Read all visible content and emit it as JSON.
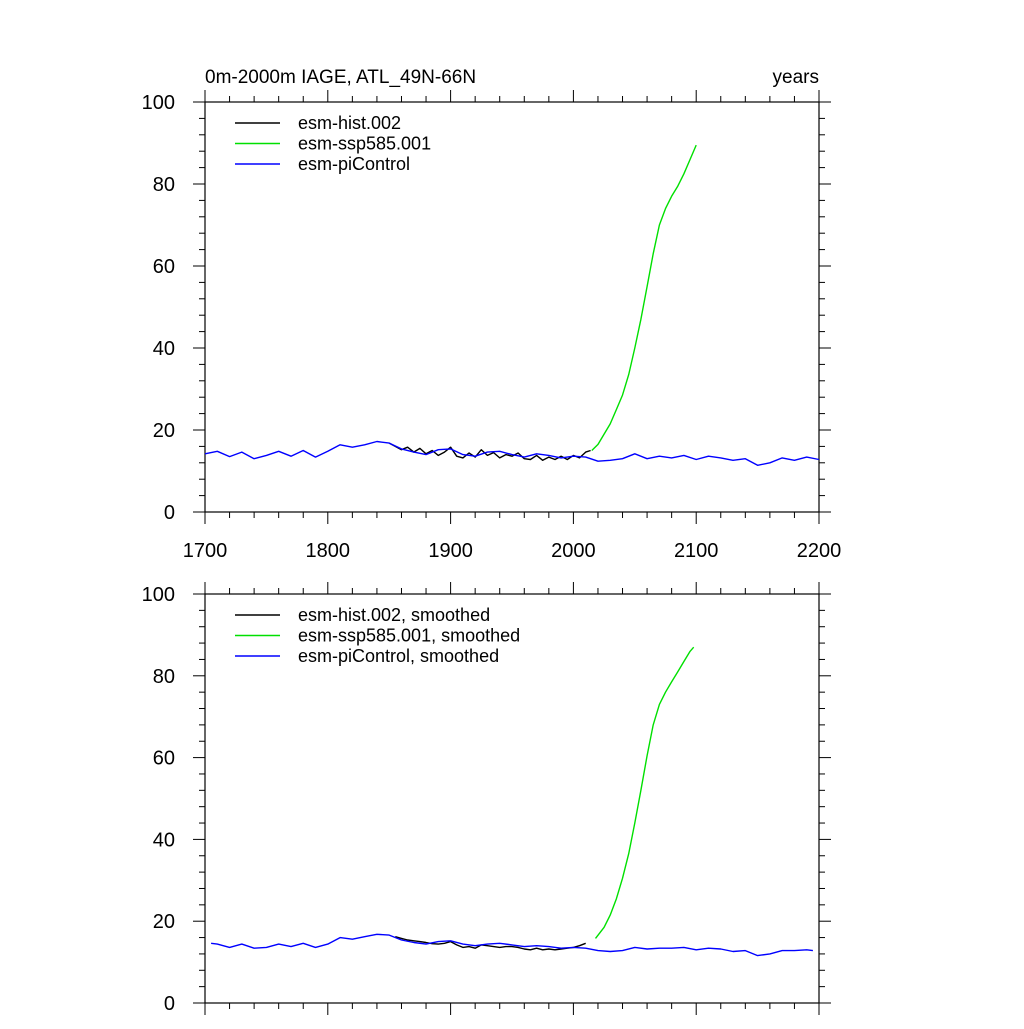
{
  "chart_data": [
    {
      "type": "line",
      "title": "0m-2000m IAGE, ATL_49N-66N",
      "units": "years",
      "xlabel": "",
      "ylabel": "",
      "xlim": [
        1700,
        2200
      ],
      "ylim": [
        0,
        100
      ],
      "xticks": [
        1700,
        1800,
        1900,
        2000,
        2100,
        2200
      ],
      "yticks": [
        0,
        20,
        40,
        60,
        80,
        100
      ],
      "x_tick_labels_shown": true,
      "legend": "top-left",
      "series": [
        {
          "name": "esm-hist.002",
          "color": "#000000",
          "x": [
            1850,
            1855,
            1860,
            1865,
            1870,
            1875,
            1880,
            1885,
            1890,
            1895,
            1900,
            1905,
            1910,
            1915,
            1920,
            1925,
            1930,
            1935,
            1940,
            1945,
            1950,
            1955,
            1960,
            1965,
            1970,
            1975,
            1980,
            1985,
            1990,
            1995,
            2000,
            2005,
            2010,
            2014
          ],
          "y": [
            16.8,
            16.0,
            15.2,
            15.8,
            14.6,
            15.5,
            14.2,
            15.0,
            13.8,
            14.6,
            15.8,
            13.6,
            13.2,
            14.4,
            13.4,
            15.2,
            13.8,
            14.5,
            13.2,
            14.0,
            13.6,
            14.4,
            13.0,
            12.8,
            13.8,
            12.6,
            13.4,
            12.8,
            13.6,
            12.8,
            13.8,
            13.2,
            14.6,
            15.0
          ]
        },
        {
          "name": "esm-ssp585.001",
          "color": "#00e000",
          "x": [
            2015,
            2020,
            2025,
            2030,
            2035,
            2040,
            2045,
            2050,
            2055,
            2060,
            2065,
            2070,
            2075,
            2080,
            2085,
            2090,
            2095,
            2100
          ],
          "y": [
            15.0,
            16.5,
            19.0,
            21.5,
            25.0,
            28.5,
            33.5,
            40.0,
            47.0,
            55.0,
            63.0,
            70.0,
            74.0,
            77.0,
            79.5,
            82.5,
            86.0,
            89.5
          ]
        },
        {
          "name": "esm-piControl",
          "color": "#0000ff",
          "x": [
            1700,
            1710,
            1720,
            1730,
            1740,
            1750,
            1760,
            1770,
            1780,
            1790,
            1800,
            1810,
            1820,
            1830,
            1840,
            1850,
            1860,
            1870,
            1880,
            1890,
            1900,
            1910,
            1920,
            1930,
            1940,
            1950,
            1960,
            1970,
            1980,
            1990,
            2000,
            2010,
            2020,
            2030,
            2040,
            2050,
            2060,
            2070,
            2080,
            2090,
            2100,
            2110,
            2120,
            2130,
            2140,
            2150,
            2160,
            2170,
            2180,
            2190,
            2200
          ],
          "y": [
            14.2,
            14.8,
            13.5,
            14.6,
            13.0,
            13.8,
            14.8,
            13.6,
            15.0,
            13.4,
            14.8,
            16.4,
            15.8,
            16.4,
            17.2,
            16.8,
            15.4,
            14.6,
            14.0,
            15.2,
            15.4,
            14.0,
            13.6,
            14.6,
            14.8,
            14.0,
            13.4,
            14.2,
            13.8,
            13.2,
            13.6,
            13.4,
            12.4,
            12.6,
            13.0,
            14.2,
            13.0,
            13.6,
            13.2,
            13.8,
            12.8,
            13.6,
            13.2,
            12.6,
            13.0,
            11.4,
            12.0,
            13.2,
            12.6,
            13.4,
            12.8
          ]
        }
      ]
    },
    {
      "type": "line",
      "title": "",
      "xlabel": "",
      "ylabel": "",
      "xlim": [
        1700,
        2200
      ],
      "ylim": [
        0,
        100
      ],
      "xticks": [
        1700,
        1800,
        1900,
        2000,
        2100,
        2200
      ],
      "yticks": [
        0,
        20,
        40,
        60,
        80,
        100
      ],
      "x_tick_labels_shown": false,
      "legend": "top-left",
      "series": [
        {
          "name": "esm-hist.002, smoothed",
          "color": "#000000",
          "x": [
            1855,
            1860,
            1865,
            1870,
            1875,
            1880,
            1885,
            1890,
            1895,
            1900,
            1905,
            1910,
            1915,
            1920,
            1925,
            1930,
            1935,
            1940,
            1945,
            1950,
            1955,
            1960,
            1965,
            1970,
            1975,
            1980,
            1985,
            1990,
            1995,
            2000,
            2005,
            2010
          ],
          "y": [
            16.2,
            15.8,
            15.4,
            15.2,
            15.0,
            14.8,
            14.5,
            14.4,
            14.6,
            15.0,
            14.2,
            13.6,
            13.8,
            13.4,
            14.2,
            14.0,
            13.8,
            13.6,
            13.8,
            13.8,
            13.6,
            13.2,
            13.0,
            13.4,
            13.0,
            13.2,
            13.0,
            13.2,
            13.4,
            13.6,
            14.0,
            14.6
          ]
        },
        {
          "name": "esm-ssp585.001, smoothed",
          "color": "#00e000",
          "x": [
            2018,
            2025,
            2030,
            2035,
            2040,
            2045,
            2050,
            2055,
            2060,
            2065,
            2070,
            2075,
            2080,
            2085,
            2090,
            2095,
            2098
          ],
          "y": [
            15.8,
            18.5,
            21.5,
            25.5,
            30.5,
            36.5,
            44.0,
            52.0,
            60.5,
            68.0,
            73.0,
            76.0,
            78.5,
            81.0,
            83.5,
            86.0,
            87.0
          ]
        },
        {
          "name": "esm-piControl, smoothed",
          "color": "#0000ff",
          "x": [
            1705,
            1710,
            1720,
            1730,
            1740,
            1750,
            1760,
            1770,
            1780,
            1790,
            1800,
            1810,
            1820,
            1830,
            1840,
            1850,
            1860,
            1870,
            1880,
            1890,
            1900,
            1910,
            1920,
            1930,
            1940,
            1950,
            1960,
            1970,
            1980,
            1990,
            2000,
            2010,
            2020,
            2030,
            2040,
            2050,
            2060,
            2070,
            2080,
            2090,
            2100,
            2110,
            2120,
            2130,
            2140,
            2150,
            2160,
            2170,
            2180,
            2190,
            2195
          ],
          "y": [
            14.6,
            14.4,
            13.6,
            14.4,
            13.4,
            13.6,
            14.4,
            13.8,
            14.6,
            13.6,
            14.4,
            16.0,
            15.6,
            16.2,
            16.8,
            16.6,
            15.4,
            14.8,
            14.4,
            15.0,
            15.2,
            14.4,
            14.0,
            14.4,
            14.6,
            14.2,
            13.8,
            14.0,
            13.8,
            13.4,
            13.6,
            13.4,
            12.8,
            12.6,
            12.8,
            13.6,
            13.2,
            13.4,
            13.4,
            13.6,
            13.0,
            13.4,
            13.2,
            12.6,
            12.8,
            11.6,
            12.0,
            12.8,
            12.8,
            13.0,
            12.8
          ]
        }
      ]
    }
  ]
}
